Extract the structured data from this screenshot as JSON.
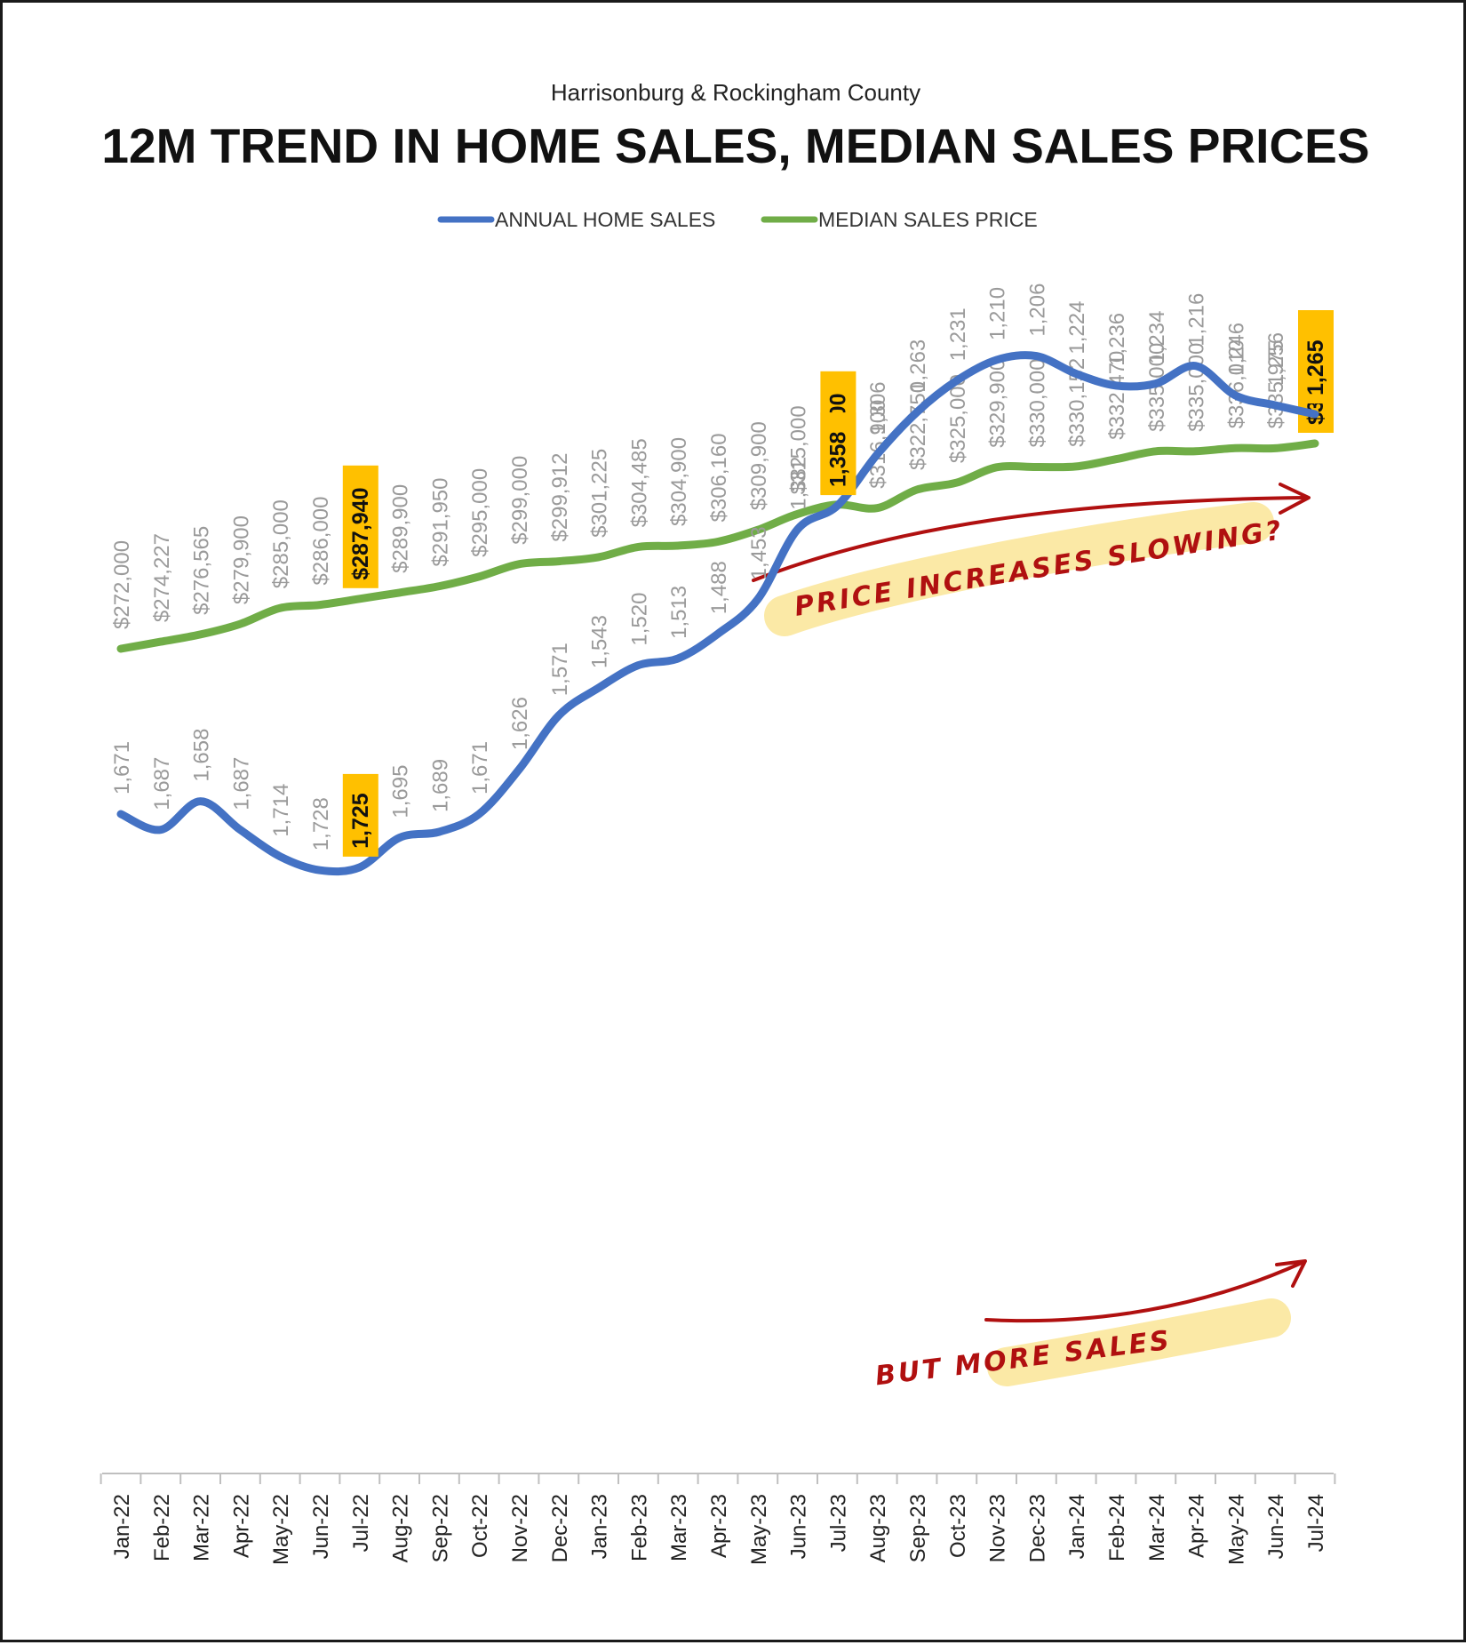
{
  "subtitle": "Harrisonburg & Rockingham County",
  "title": "12M TREND IN HOME SALES, MEDIAN SALES PRICES",
  "annotations": {
    "price_note": "PRICE INCREASES SLOWING?",
    "sales_note": "BUT MORE SALES"
  },
  "colors": {
    "sales": "#4472c4",
    "price": "#70ad47",
    "highlight": "#ffc000",
    "arrow": "#b01010",
    "note_bg": "#fbe9a6"
  },
  "chart_data": {
    "type": "line",
    "categories": [
      "Jan-22",
      "Feb-22",
      "Mar-22",
      "Apr-22",
      "May-22",
      "Jun-22",
      "Jul-22",
      "Aug-22",
      "Sep-22",
      "Oct-22",
      "Nov-22",
      "Dec-22",
      "Jan-23",
      "Feb-23",
      "Mar-23",
      "Apr-23",
      "May-23",
      "Jun-23",
      "Jul-23",
      "Aug-23",
      "Sep-23",
      "Oct-23",
      "Nov-23",
      "Dec-23",
      "Jan-24",
      "Feb-24",
      "Mar-24",
      "Apr-24",
      "May-24",
      "Jun-24",
      "Jul-24"
    ],
    "series": [
      {
        "name": "ANNUAL HOME SALES",
        "values": [
          1671,
          1687,
          1658,
          1687,
          1714,
          1728,
          1725,
          1695,
          1689,
          1671,
          1626,
          1571,
          1543,
          1520,
          1513,
          1488,
          1453,
          1382,
          1358,
          1306,
          1263,
          1231,
          1210,
          1206,
          1224,
          1236,
          1234,
          1216,
          1246,
          1256,
          1265
        ],
        "labels": [
          "1,671",
          "1,687",
          "1,658",
          "1,687",
          "1,714",
          "1,728",
          "1,725",
          "1,695",
          "1,689",
          "1,671",
          "1,626",
          "1,571",
          "1,543",
          "1,520",
          "1,513",
          "1,488",
          "1,453",
          "1,382",
          "1,358",
          "1,306",
          "1,263",
          "1,231",
          "1,210",
          "1,206",
          "1,224",
          "1,236",
          "1,234",
          "1,216",
          "1,246",
          "1,256",
          "1,265"
        ],
        "highlighted": [
          "Jul-22",
          "Jul-23",
          "Jul-24"
        ]
      },
      {
        "name": "MEDIAN SALES PRICE",
        "values": [
          272000,
          274227,
          276565,
          279900,
          285000,
          286000,
          287940,
          289900,
          291950,
          295000,
          299000,
          299912,
          301225,
          304485,
          304900,
          306160,
          309900,
          315000,
          318000,
          316900,
          322750,
          325000,
          329900,
          330000,
          330152,
          332470,
          335000,
          335000,
          336010,
          335975,
          337500
        ],
        "labels": [
          "$272,000",
          "$274,227",
          "$276,565",
          "$279,900",
          "$285,000",
          "$286,000",
          "$287,940",
          "$289,900",
          "$291,950",
          "$295,000",
          "$299,000",
          "$299,912",
          "$301,225",
          "$304,485",
          "$304,900",
          "$306,160",
          "$309,900",
          "$315,000",
          "$318,000",
          "$316,900",
          "$322,750",
          "$325,000",
          "$329,900",
          "$330,000",
          "$330,152",
          "$332,470",
          "$335,000",
          "$335,000",
          "$336,010",
          "$335,975",
          "$337,500"
        ],
        "highlighted": [
          "Jul-22",
          "Jul-23",
          "Jul-24"
        ]
      }
    ],
    "legend_position": "top-center",
    "grid": false
  }
}
